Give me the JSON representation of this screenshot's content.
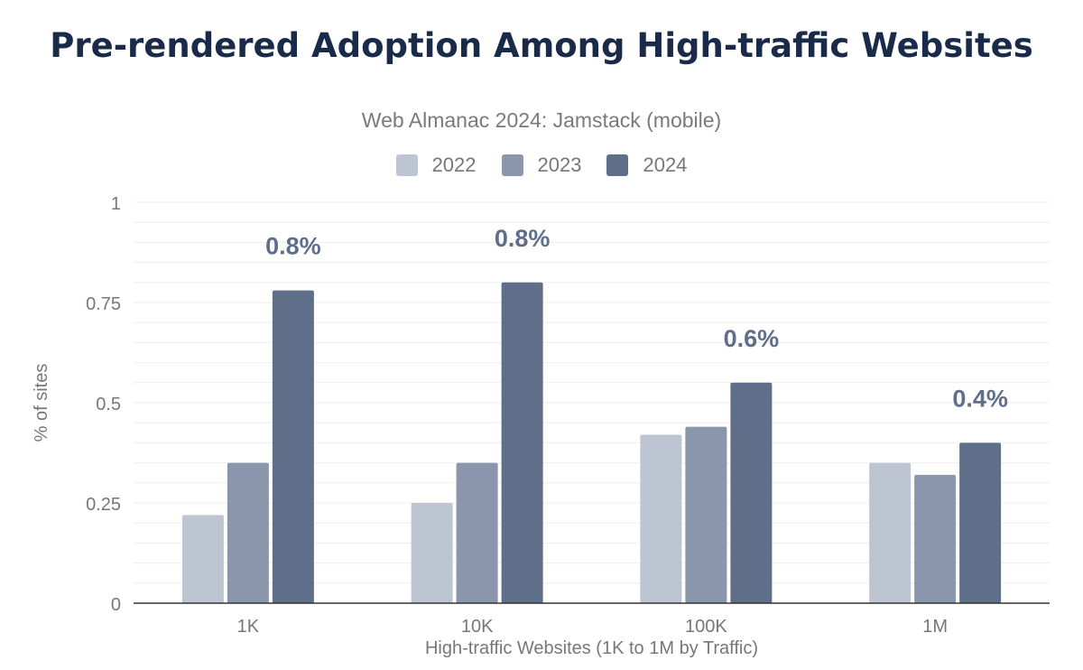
{
  "chart_data": {
    "type": "bar",
    "title": "Pre-rendered Adoption Among High-traffic Websites",
    "subtitle": "Web Almanac 2024: Jamstack (mobile)",
    "xlabel": "High-traffic Websites (1K to 1M by Traffic)",
    "ylabel": "% of sites",
    "ylim": [
      0,
      1
    ],
    "yticks": [
      "0",
      "0.25",
      "0.5",
      "0.75",
      "1"
    ],
    "grid": true,
    "legend_position": "top",
    "categories": [
      "1K",
      "10K",
      "100K",
      "1M"
    ],
    "series": [
      {
        "name": "2022",
        "color": "#bdc5d3",
        "values": [
          0.22,
          0.25,
          0.42,
          0.35
        ]
      },
      {
        "name": "2023",
        "color": "#8a96ab",
        "values": [
          0.35,
          0.35,
          0.44,
          0.32
        ]
      },
      {
        "name": "2024",
        "color": "#5f6f89",
        "values": [
          0.78,
          0.8,
          0.55,
          0.4
        ]
      }
    ],
    "data_labels": [
      "0.8%",
      "0.8%",
      "0.6%",
      "0.4%"
    ]
  }
}
